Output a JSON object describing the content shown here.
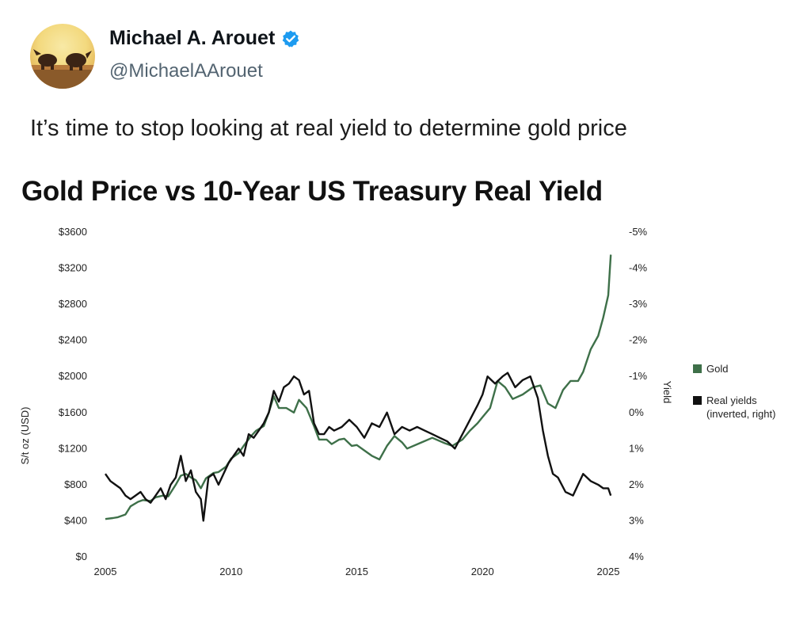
{
  "tweet": {
    "display_name": "Michael A. Arouet",
    "handle": "@MichaelAArouet",
    "text": "It’s time to stop looking at real yield to determine gold price",
    "verified_color": "#1d9bf0"
  },
  "chart_data": {
    "type": "line",
    "title": "Gold Price vs 10-Year US Treasury Real Yield",
    "ylabel": "S/t oz (USD)",
    "y2label": "Yield",
    "xlim": [
      2005,
      2025
    ],
    "ylim": [
      0,
      3600
    ],
    "y2lim": [
      -5,
      4
    ],
    "y2_inverted": true,
    "x_ticks": [
      "2005",
      "2010",
      "2015",
      "2020",
      "2025"
    ],
    "y_ticks": [
      "$0",
      "$400",
      "$800",
      "$1200",
      "$1600",
      "$2000",
      "$2400",
      "$2800",
      "$3200",
      "$3600"
    ],
    "y2_ticks": [
      "-5%",
      "-4%",
      "-3%",
      "-2%",
      "-1%",
      "0%",
      "1%",
      "2%",
      "3%",
      "4%"
    ],
    "legend_position": "right",
    "grid": false,
    "series": [
      {
        "name": "Gold",
        "axis": "left",
        "color": "#3e7049",
        "x": [
          2005.0,
          2005.3,
          2005.5,
          2005.8,
          2006.0,
          2006.3,
          2006.5,
          2006.8,
          2007.0,
          2007.3,
          2007.5,
          2007.8,
          2008.0,
          2008.2,
          2008.4,
          2008.6,
          2008.8,
          2009.0,
          2009.3,
          2009.5,
          2009.8,
          2010.0,
          2010.3,
          2010.5,
          2010.8,
          2011.0,
          2011.3,
          2011.5,
          2011.7,
          2011.9,
          2012.2,
          2012.5,
          2012.7,
          2013.0,
          2013.3,
          2013.5,
          2013.8,
          2014.0,
          2014.3,
          2014.5,
          2014.8,
          2015.0,
          2015.3,
          2015.6,
          2015.9,
          2016.2,
          2016.5,
          2016.8,
          2017.0,
          2017.5,
          2018.0,
          2018.5,
          2018.8,
          2019.2,
          2019.5,
          2019.8,
          2020.0,
          2020.3,
          2020.6,
          2020.9,
          2021.2,
          2021.6,
          2022.0,
          2022.3,
          2022.6,
          2022.9,
          2023.2,
          2023.5,
          2023.8,
          2024.0,
          2024.3,
          2024.6,
          2024.8,
          2025.0,
          2025.1
        ],
        "values": [
          420,
          430,
          440,
          470,
          560,
          610,
          630,
          620,
          660,
          680,
          670,
          800,
          900,
          920,
          880,
          850,
          760,
          870,
          930,
          940,
          1000,
          1090,
          1150,
          1230,
          1340,
          1400,
          1450,
          1600,
          1780,
          1650,
          1650,
          1600,
          1740,
          1650,
          1450,
          1300,
          1300,
          1250,
          1300,
          1310,
          1230,
          1240,
          1180,
          1120,
          1080,
          1230,
          1340,
          1270,
          1200,
          1260,
          1320,
          1260,
          1230,
          1300,
          1400,
          1480,
          1550,
          1650,
          1950,
          1880,
          1750,
          1800,
          1880,
          1900,
          1700,
          1650,
          1850,
          1950,
          1950,
          2050,
          2300,
          2450,
          2650,
          2900,
          3350
        ]
      },
      {
        "name": "Real yields (inverted, right)",
        "axis": "right",
        "color": "#111111",
        "x": [
          2005.0,
          2005.2,
          2005.4,
          2005.6,
          2005.8,
          2006.0,
          2006.2,
          2006.4,
          2006.6,
          2006.8,
          2007.0,
          2007.2,
          2007.4,
          2007.6,
          2007.8,
          2008.0,
          2008.2,
          2008.4,
          2008.6,
          2008.8,
          2008.9,
          2009.1,
          2009.3,
          2009.5,
          2009.7,
          2009.9,
          2010.1,
          2010.3,
          2010.5,
          2010.7,
          2010.9,
          2011.1,
          2011.3,
          2011.5,
          2011.7,
          2011.9,
          2012.1,
          2012.3,
          2012.5,
          2012.7,
          2012.9,
          2013.1,
          2013.3,
          2013.5,
          2013.7,
          2013.9,
          2014.1,
          2014.4,
          2014.7,
          2015.0,
          2015.3,
          2015.6,
          2015.9,
          2016.2,
          2016.5,
          2016.8,
          2017.1,
          2017.4,
          2017.7,
          2018.0,
          2018.3,
          2018.6,
          2018.9,
          2019.2,
          2019.5,
          2019.8,
          2020.0,
          2020.2,
          2020.5,
          2020.8,
          2021.0,
          2021.3,
          2021.6,
          2021.9,
          2022.2,
          2022.4,
          2022.6,
          2022.8,
          2023.0,
          2023.3,
          2023.6,
          2023.8,
          2024.0,
          2024.3,
          2024.6,
          2024.8,
          2025.0,
          2025.1
        ],
        "values": [
          1.7,
          1.9,
          2.0,
          2.1,
          2.3,
          2.4,
          2.3,
          2.2,
          2.4,
          2.5,
          2.3,
          2.1,
          2.4,
          2.0,
          1.8,
          1.2,
          1.9,
          1.6,
          2.2,
          2.4,
          3.0,
          1.8,
          1.7,
          2.0,
          1.7,
          1.4,
          1.2,
          1.0,
          1.2,
          0.6,
          0.7,
          0.5,
          0.3,
          0.0,
          -0.6,
          -0.3,
          -0.7,
          -0.8,
          -1.0,
          -0.9,
          -0.5,
          -0.6,
          0.3,
          0.6,
          0.6,
          0.4,
          0.5,
          0.4,
          0.2,
          0.4,
          0.7,
          0.3,
          0.4,
          0.0,
          0.6,
          0.4,
          0.5,
          0.4,
          0.5,
          0.6,
          0.7,
          0.8,
          1.0,
          0.6,
          0.2,
          -0.2,
          -0.5,
          -1.0,
          -0.8,
          -1.0,
          -1.1,
          -0.7,
          -0.9,
          -1.0,
          -0.4,
          0.5,
          1.2,
          1.7,
          1.8,
          2.2,
          2.3,
          2.0,
          1.7,
          1.9,
          2.0,
          2.1,
          2.1,
          2.3
        ]
      }
    ]
  }
}
